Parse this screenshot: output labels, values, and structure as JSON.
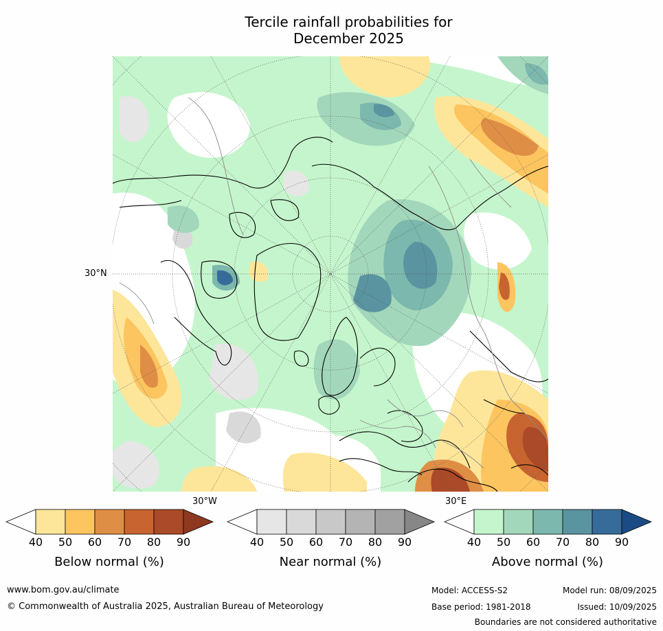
{
  "title": {
    "line1": "Tercile rainfall probabilities for",
    "line2": "December 2025"
  },
  "map": {
    "projection": "north polar stereographic",
    "labels": {
      "lat_30n": "30°N",
      "lon_30w": "30°W",
      "lon_30e": "30°E"
    }
  },
  "colorbars": [
    {
      "name": "Below normal (%)",
      "ticks": [
        "40",
        "50",
        "60",
        "70",
        "80",
        "90"
      ],
      "colors": [
        "#ffffff",
        "#fde69a",
        "#fcc560",
        "#df8f45",
        "#c76430",
        "#aa4a28",
        "#8f3820"
      ]
    },
    {
      "name": "Near normal (%)",
      "ticks": [
        "40",
        "50",
        "60",
        "70",
        "80",
        "90"
      ],
      "colors": [
        "#ffffff",
        "#e6e6e6",
        "#d9d9d9",
        "#c8c8c8",
        "#b4b4b4",
        "#a1a1a1",
        "#878787"
      ]
    },
    {
      "name": "Above normal (%)",
      "ticks": [
        "40",
        "50",
        "60",
        "70",
        "80",
        "90"
      ],
      "colors": [
        "#ffffff",
        "#c5f5cc",
        "#a3d7bb",
        "#7cb8ad",
        "#5a94a0",
        "#376c9a",
        "#1b4b84"
      ]
    }
  ],
  "footer": {
    "website": "www.bom.gov.au/climate",
    "copyright": "© Commonwealth of Australia 2025, Australian Bureau of Meteorology",
    "model": "Model: ACCESS-S2",
    "base_period": "Base period: 1981-2018",
    "model_run": "Model run: 08/09/2025",
    "issued": "Issued: 10/09/2025",
    "disclaimer": "Boundaries are not considered authoritative"
  }
}
